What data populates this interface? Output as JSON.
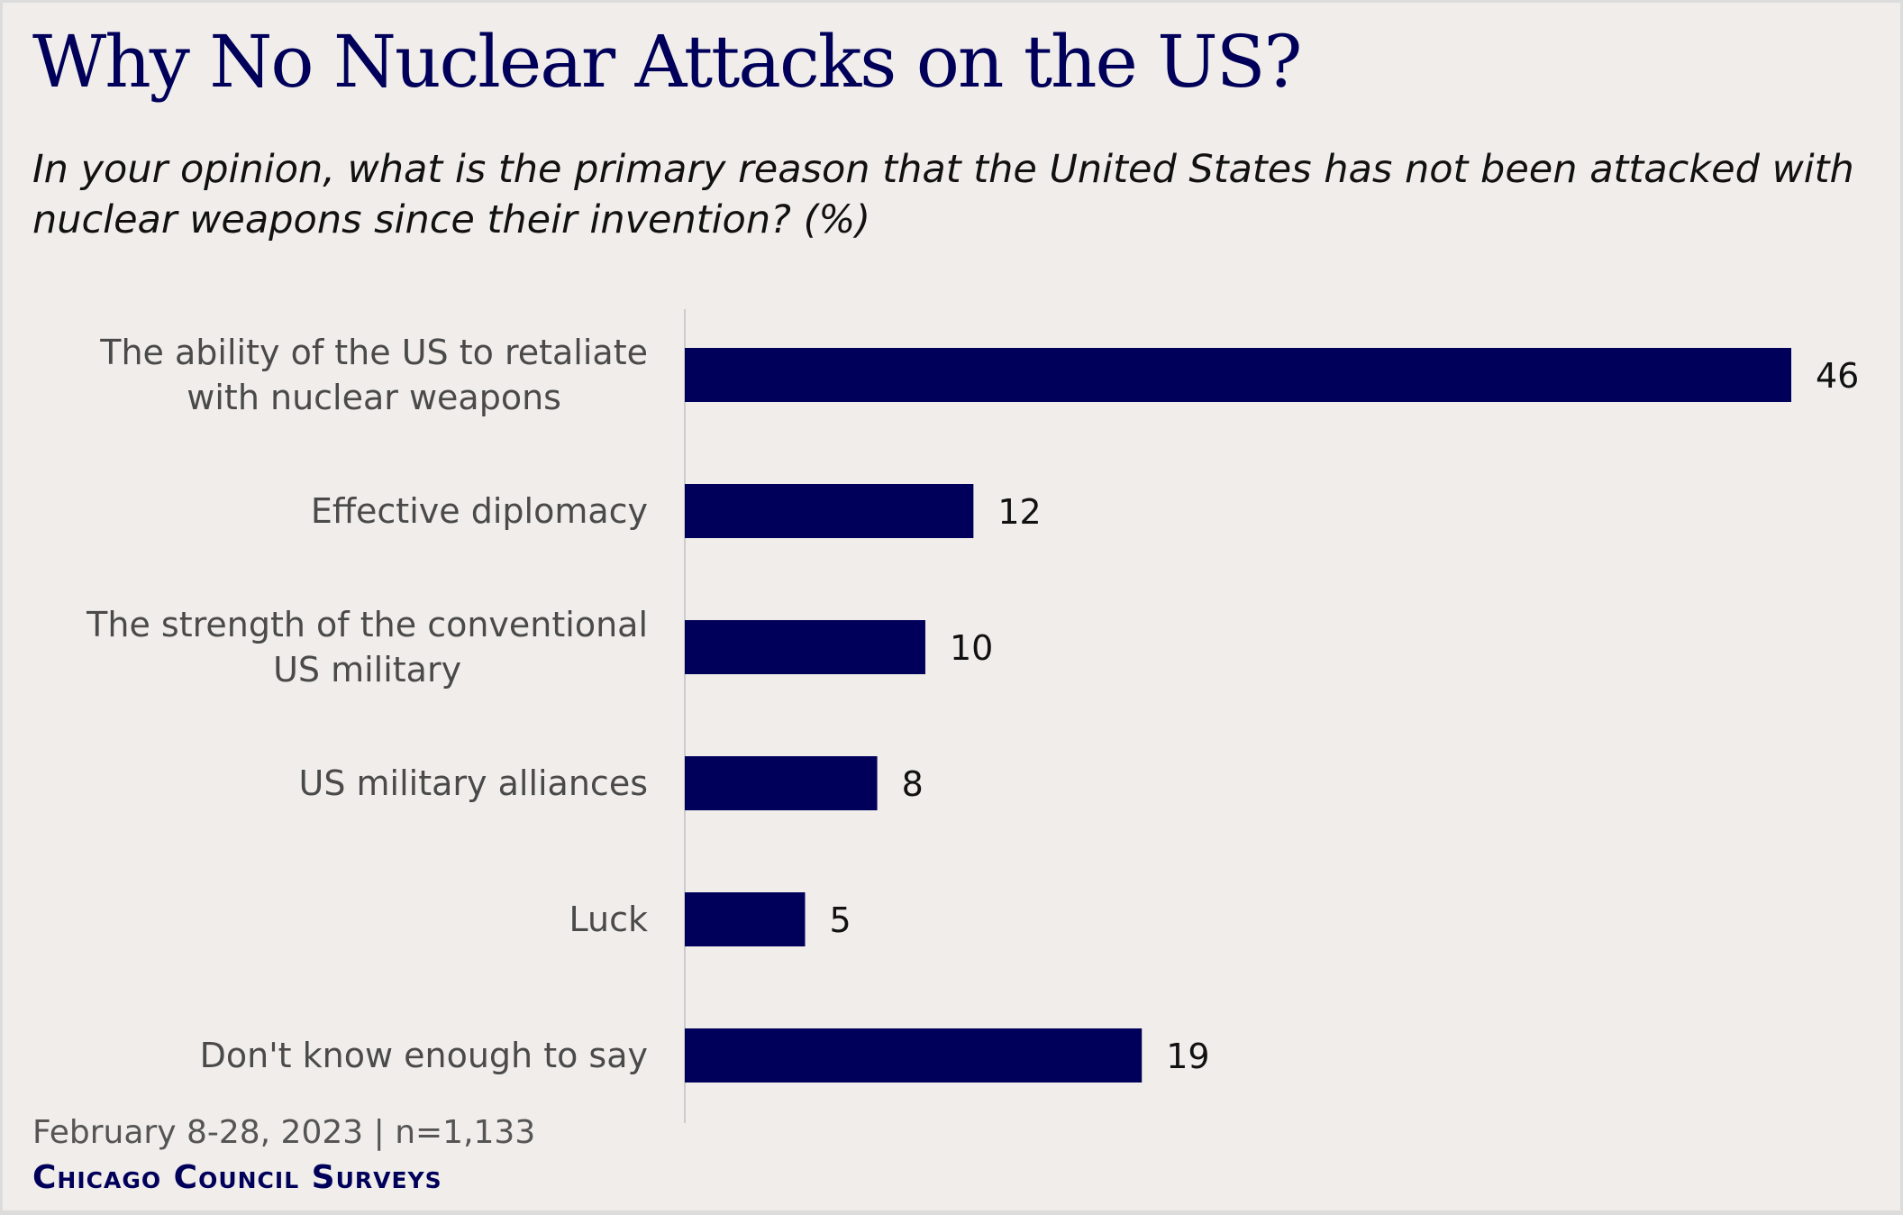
{
  "chart_data": {
    "type": "bar",
    "orientation": "horizontal",
    "title": "Why No Nuclear Attacks on the US?",
    "subtitle": "In your opinion, what is the primary reason that the United States has not been attacked with nuclear weapons since their invention? (%)",
    "categories": [
      "The ability of the US to retaliate with nuclear weapons",
      "Effective diplomacy",
      "The strength of the conventional US military",
      "US military alliances",
      "Luck",
      "Don't know enough to say"
    ],
    "category_lines": [
      [
        "The ability of the US to retaliate",
        "with nuclear weapons"
      ],
      [
        "Effective diplomacy"
      ],
      [
        "The strength of the conventional",
        "US military"
      ],
      [
        "US military alliances"
      ],
      [
        "Luck"
      ],
      [
        "Don't know enough to say"
      ]
    ],
    "values": [
      46,
      12,
      10,
      8,
      5,
      19
    ],
    "xlim": [
      0,
      46
    ],
    "grid": false,
    "bar_color": "#00005a",
    "background_color": "#f0edea"
  },
  "footer": {
    "source": "February 8-28, 2023 | n=1,133",
    "brand": "Chicago Council Surveys"
  }
}
